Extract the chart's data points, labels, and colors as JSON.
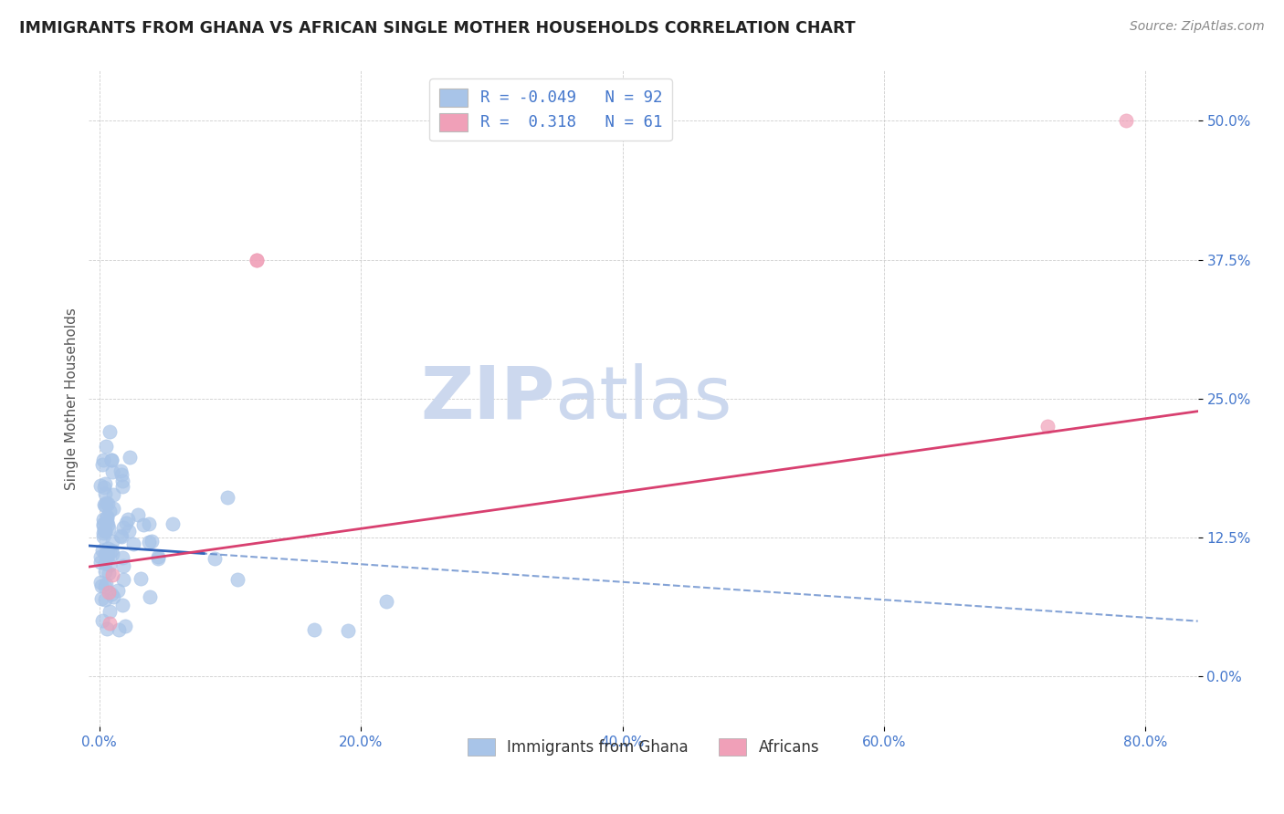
{
  "title": "IMMIGRANTS FROM GHANA VS AFRICAN SINGLE MOTHER HOUSEHOLDS CORRELATION CHART",
  "source": "Source: ZipAtlas.com",
  "ylabel": "Single Mother Households",
  "xlabel_ticks": [
    "0.0%",
    "20.0%",
    "40.0%",
    "60.0%",
    "80.0%"
  ],
  "xlabel_vals": [
    0.0,
    0.2,
    0.4,
    0.6,
    0.8
  ],
  "ylabel_ticks": [
    "0.0%",
    "12.5%",
    "25.0%",
    "37.5%",
    "50.0%"
  ],
  "ylabel_vals": [
    0.0,
    0.125,
    0.25,
    0.375,
    0.5
  ],
  "xlim": [
    -0.008,
    0.84
  ],
  "ylim": [
    -0.045,
    0.545
  ],
  "legend_blue_label": "Immigrants from Ghana",
  "legend_pink_label": "Africans",
  "R_blue": -0.049,
  "N_blue": 92,
  "R_pink": 0.318,
  "N_pink": 61,
  "blue_color": "#a8c4e8",
  "pink_color": "#f0a0b8",
  "blue_line_color": "#3366bb",
  "pink_line_color": "#d84070",
  "watermark_zip": "ZIP",
  "watermark_atlas": "atlas",
  "watermark_color": "#ccd8ee",
  "title_fontsize": 12.5,
  "source_fontsize": 10,
  "tick_fontsize": 11,
  "ylabel_fontsize": 11
}
